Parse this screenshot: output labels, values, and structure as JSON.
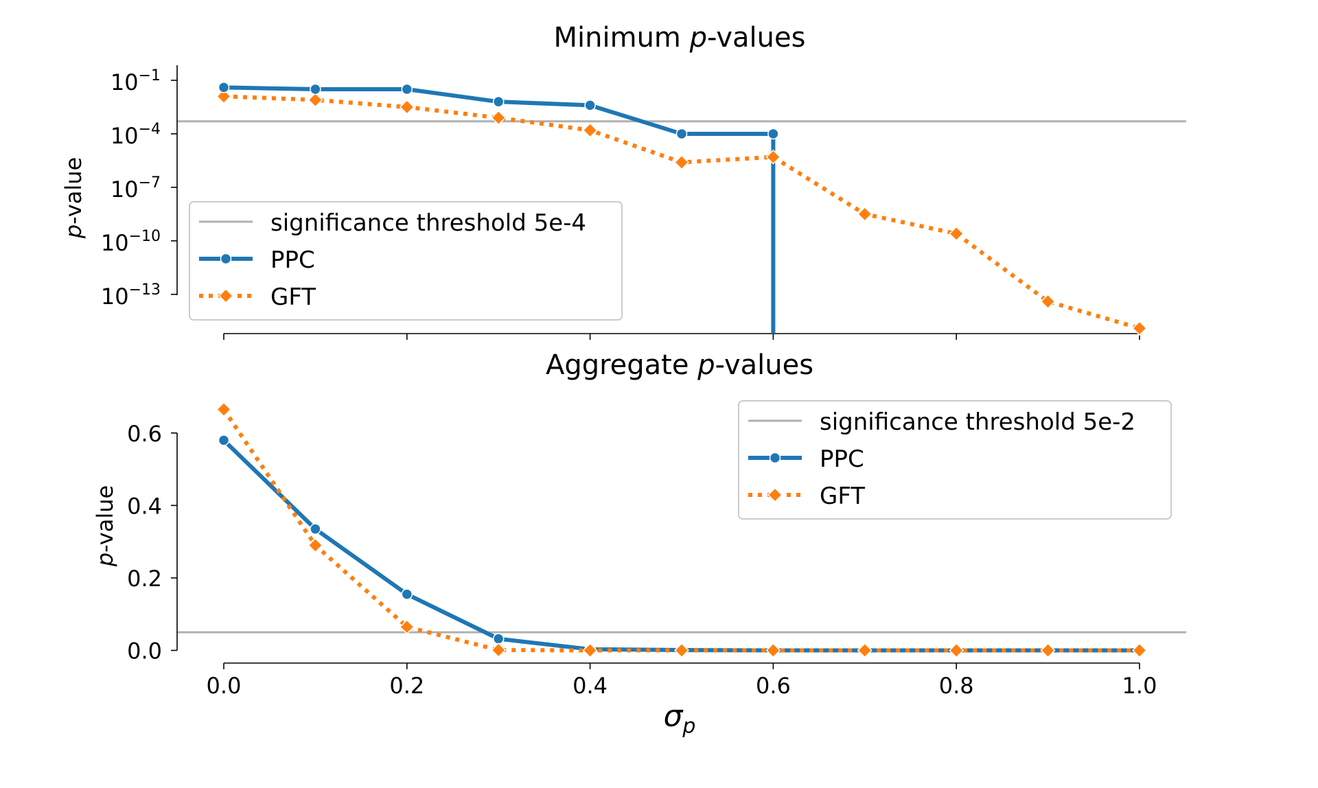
{
  "chart_data": [
    {
      "type": "line",
      "panel": "top",
      "title_main": "Minimum ",
      "title_italic": "p",
      "title_tail": "-values",
      "ylabel_italic": "p",
      "ylabel_tail": "-value",
      "yscale": "log",
      "ylim_log10": [
        -15.2,
        0.5
      ],
      "yticks": [
        {
          "exp": -1,
          "base": "10",
          "sup": "−1"
        },
        {
          "exp": -4,
          "base": "10",
          "sup": "−4"
        },
        {
          "exp": -7,
          "base": "10",
          "sup": "−7"
        },
        {
          "exp": -10,
          "base": "10",
          "sup": "−10"
        },
        {
          "exp": -13,
          "base": "10",
          "sup": "−13"
        }
      ],
      "x": [
        0.0,
        0.1,
        0.2,
        0.3,
        0.4,
        0.5,
        0.6,
        0.7,
        0.8,
        0.9,
        1.0
      ],
      "threshold": {
        "value": 0.0005,
        "label": "significance threshold 5e-4",
        "color": "#b0b0b0"
      },
      "series": [
        {
          "name": "PPC",
          "color": "#1f77b4",
          "style": "solid",
          "marker": "circle",
          "log10_values": [
            -1.4,
            -1.5,
            -1.5,
            -2.2,
            -2.4,
            -4.0,
            -4.0,
            null,
            null,
            null,
            null
          ],
          "drop_after_index": 6
        },
        {
          "name": "GFT",
          "color": "#ff7f0e",
          "style": "dotted",
          "marker": "diamond",
          "log10_values": [
            -1.9,
            -2.1,
            -2.5,
            -3.1,
            -3.8,
            -5.6,
            -5.3,
            -8.5,
            -9.6,
            -13.4,
            -14.9
          ]
        }
      ],
      "legend": {
        "location": "lower-left"
      }
    },
    {
      "type": "line",
      "panel": "bottom",
      "title_main": "Aggregate ",
      "title_italic": "p",
      "title_tail": "-values",
      "ylabel_italic": "p",
      "ylabel_tail": "-value",
      "xlabel_symbol": "σ",
      "xlabel_sub": "p",
      "ylim": [
        -0.035,
        0.7
      ],
      "yticks": [
        {
          "value": 0.0,
          "label": "0.0"
        },
        {
          "value": 0.2,
          "label": "0.2"
        },
        {
          "value": 0.4,
          "label": "0.4"
        },
        {
          "value": 0.6,
          "label": "0.6"
        }
      ],
      "x": [
        0.0,
        0.1,
        0.2,
        0.3,
        0.4,
        0.5,
        0.6,
        0.7,
        0.8,
        0.9,
        1.0
      ],
      "xticks": [
        {
          "value": 0.0,
          "label": "0.0"
        },
        {
          "value": 0.2,
          "label": "0.2"
        },
        {
          "value": 0.4,
          "label": "0.4"
        },
        {
          "value": 0.6,
          "label": "0.6"
        },
        {
          "value": 0.8,
          "label": "0.8"
        },
        {
          "value": 1.0,
          "label": "1.0"
        }
      ],
      "threshold": {
        "value": 0.05,
        "label": "significance threshold 5e-2",
        "color": "#b0b0b0"
      },
      "series": [
        {
          "name": "PPC",
          "color": "#1f77b4",
          "style": "solid",
          "marker": "circle",
          "values": [
            0.58,
            0.335,
            0.155,
            0.032,
            0.003,
            0.001,
            0.0,
            0.0,
            0.0,
            0.0,
            0.0
          ]
        },
        {
          "name": "GFT",
          "color": "#ff7f0e",
          "style": "dotted",
          "marker": "diamond",
          "values": [
            0.665,
            0.29,
            0.065,
            0.001,
            0.0,
            0.0,
            0.0,
            0.0,
            0.0,
            0.0,
            0.0
          ]
        }
      ],
      "legend": {
        "location": "upper-right"
      }
    }
  ]
}
